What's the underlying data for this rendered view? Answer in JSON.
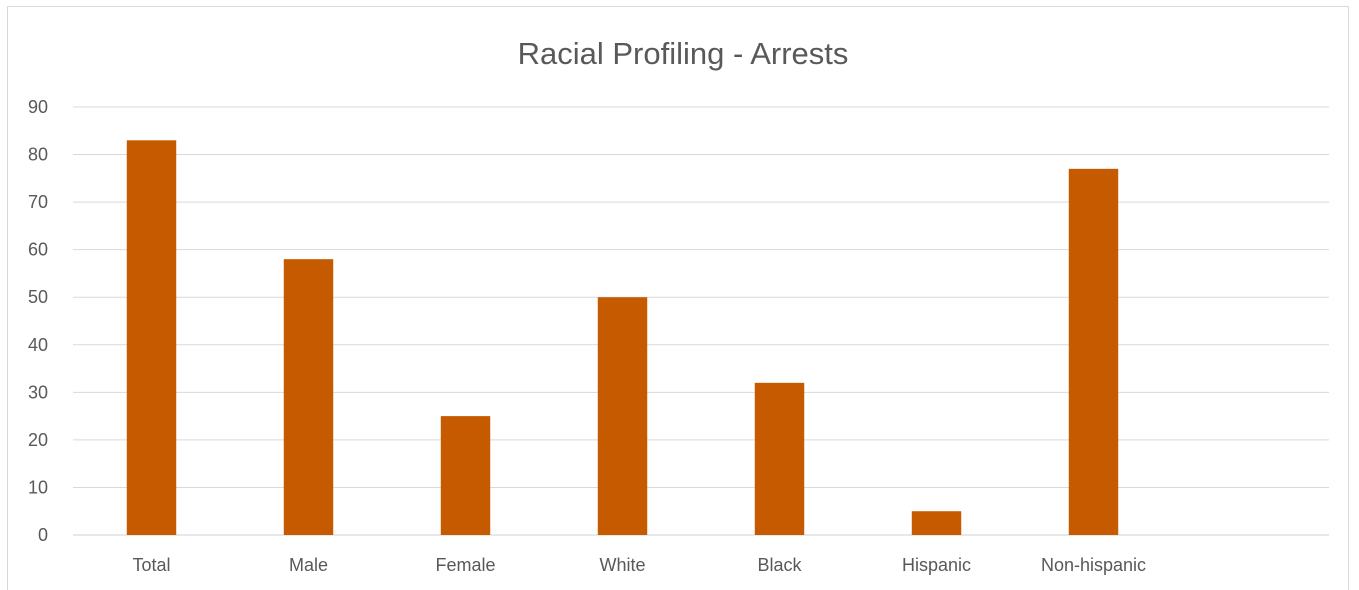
{
  "chart_data": {
    "type": "bar",
    "title": "Racial Profiling - Arrests",
    "categories": [
      "Total",
      "Male",
      "Female",
      "White",
      "Black",
      "Hispanic",
      "Non-hispanic"
    ],
    "values": [
      83,
      58,
      25,
      50,
      32,
      5,
      77
    ],
    "xlabel": "",
    "ylabel": "",
    "ylim": [
      0,
      90
    ],
    "yticks": [
      0,
      10,
      20,
      30,
      40,
      50,
      60,
      70,
      80,
      90
    ],
    "grid": true,
    "legend": "none",
    "bar_color": "#C55A00"
  }
}
